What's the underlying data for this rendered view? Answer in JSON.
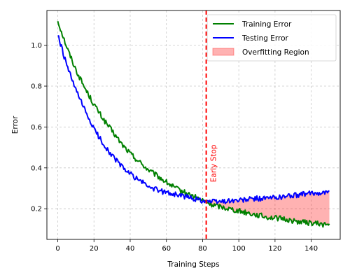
{
  "chart_data": {
    "type": "line",
    "title": "",
    "xlabel": "Training Steps",
    "ylabel": "Error",
    "xlim": [
      -6,
      156
    ],
    "ylim": [
      0.05,
      1.17
    ],
    "xticks": [
      0,
      20,
      40,
      60,
      80,
      100,
      120,
      140
    ],
    "yticks": [
      0.2,
      0.4,
      0.6,
      0.8,
      1.0
    ],
    "xtick_labels": [
      "0",
      "20",
      "40",
      "60",
      "80",
      "100",
      "120",
      "140"
    ],
    "ytick_labels": [
      "0.2",
      "0.4",
      "0.6",
      "0.8",
      "1.0"
    ],
    "grid": true,
    "legend_position": "top-right",
    "legend": [
      "Training Error",
      "Testing Error",
      "Overfitting Region"
    ],
    "x": [
      0,
      5,
      10,
      15,
      20,
      25,
      30,
      35,
      40,
      45,
      50,
      55,
      60,
      65,
      70,
      75,
      80,
      85,
      90,
      95,
      100,
      105,
      110,
      115,
      120,
      125,
      130,
      135,
      140,
      145,
      150
    ],
    "series": [
      {
        "name": "Training Error",
        "color": "#008000",
        "values": [
          1.12,
          0.99,
          0.88,
          0.79,
          0.71,
          0.64,
          0.58,
          0.52,
          0.47,
          0.43,
          0.39,
          0.36,
          0.33,
          0.3,
          0.28,
          0.26,
          0.24,
          0.22,
          0.21,
          0.2,
          0.19,
          0.18,
          0.17,
          0.16,
          0.155,
          0.15,
          0.14,
          0.135,
          0.13,
          0.125,
          0.12
        ]
      },
      {
        "name": "Testing Error",
        "color": "#0000ff",
        "values": [
          1.05,
          0.9,
          0.78,
          0.68,
          0.59,
          0.52,
          0.46,
          0.41,
          0.37,
          0.34,
          0.31,
          0.29,
          0.28,
          0.27,
          0.26,
          0.25,
          0.24,
          0.235,
          0.235,
          0.24,
          0.24,
          0.245,
          0.25,
          0.25,
          0.255,
          0.26,
          0.265,
          0.27,
          0.275,
          0.28,
          0.28
        ]
      }
    ],
    "fill_region": {
      "name": "Overfitting Region",
      "color": "#ff0000",
      "alpha": 0.3,
      "x_start": 82,
      "x_end": 150,
      "between": [
        "Testing Error",
        "Training Error"
      ]
    },
    "vline": {
      "x": 82,
      "color": "#ff0000",
      "style": "dashed",
      "label": "Early Stop"
    }
  }
}
